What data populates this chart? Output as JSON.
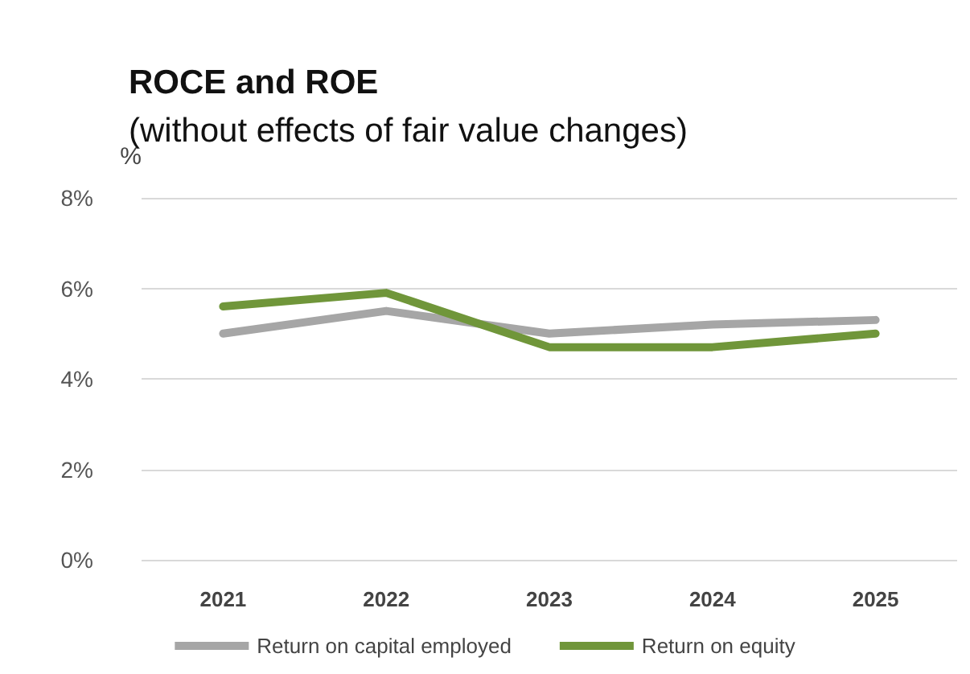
{
  "chart_data": {
    "type": "line",
    "title": "ROCE and ROE",
    "subtitle": "(without effects of fair value changes)",
    "ylabel": "%",
    "categories": [
      "2021",
      "2022",
      "2023",
      "2024",
      "2025"
    ],
    "series": [
      {
        "name": "Return on capital employed",
        "color": "#a6a6a6",
        "values": [
          5.0,
          5.5,
          5.0,
          5.2,
          5.3
        ]
      },
      {
        "name": "Return on equity",
        "color": "#70963a",
        "values": [
          5.6,
          5.9,
          4.7,
          4.7,
          5.0
        ]
      }
    ],
    "ylim": [
      0,
      8
    ],
    "yticks": [
      {
        "value": 0,
        "label": "0%"
      },
      {
        "value": 2,
        "label": "2%"
      },
      {
        "value": 4,
        "label": "4%"
      },
      {
        "value": 6,
        "label": "6%"
      },
      {
        "value": 8,
        "label": "8%"
      }
    ],
    "grid": "y",
    "legend": "bottom",
    "marker": "none",
    "line_style": "solid"
  }
}
